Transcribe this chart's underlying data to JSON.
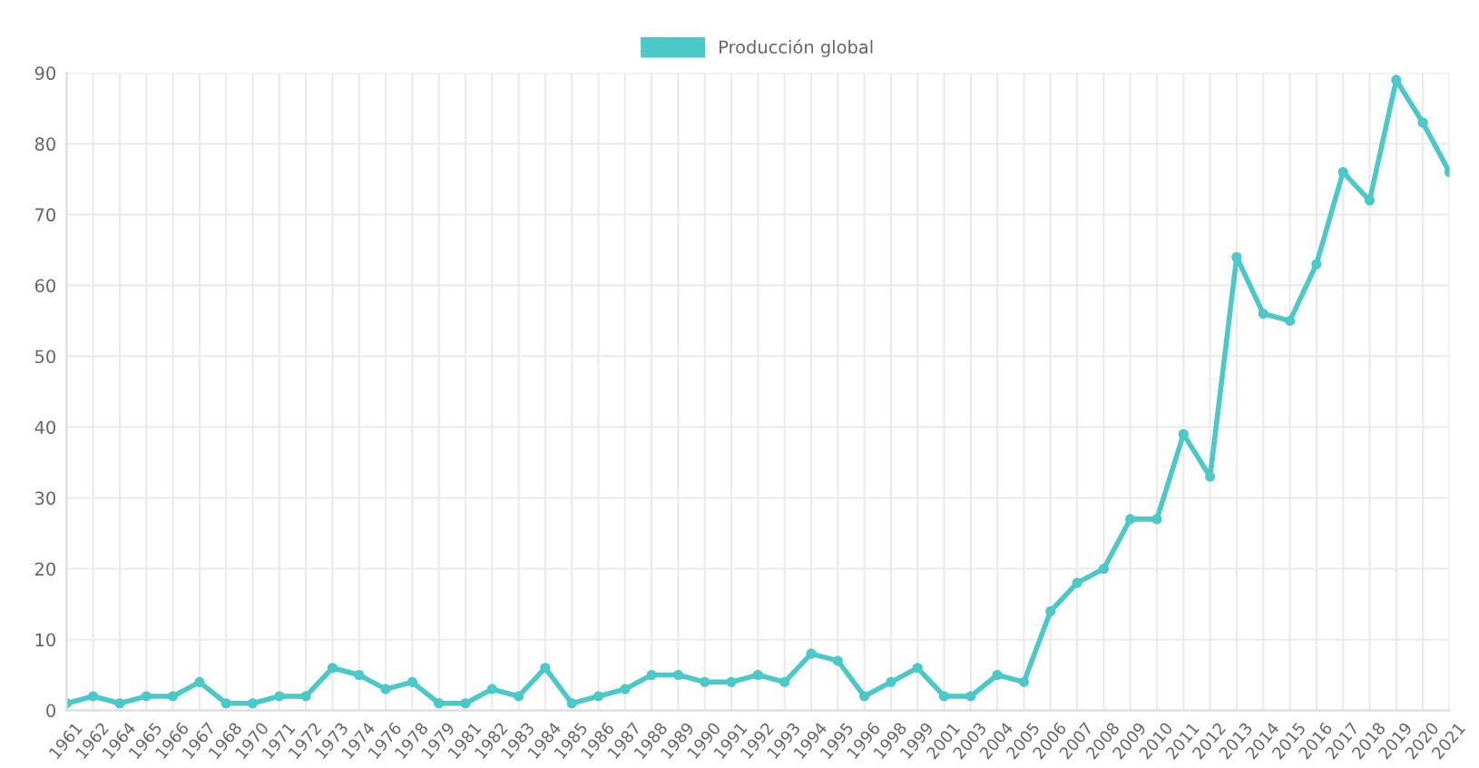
{
  "chart_data": {
    "type": "line",
    "categories": [
      "1961",
      "1962",
      "1964",
      "1965",
      "1966",
      "1967",
      "1968",
      "1970",
      "1971",
      "1972",
      "1973",
      "1974",
      "1976",
      "1978",
      "1979",
      "1981",
      "1982",
      "1983",
      "1984",
      "1985",
      "1986",
      "1987",
      "1988",
      "1989",
      "1990",
      "1991",
      "1992",
      "1993",
      "1994",
      "1995",
      "1996",
      "1998",
      "1999",
      "2001",
      "2003",
      "2004",
      "2005",
      "2006",
      "2007",
      "2008",
      "2009",
      "2010",
      "2011",
      "2012",
      "2013",
      "2014",
      "2015",
      "2016",
      "2017",
      "2018",
      "2019",
      "2020",
      "2021"
    ],
    "series": [
      {
        "name": "Producción global",
        "color": "#4bc8c8",
        "values": [
          1,
          2,
          1,
          2,
          2,
          4,
          1,
          1,
          2,
          2,
          6,
          5,
          3,
          4,
          1,
          1,
          3,
          2,
          6,
          1,
          2,
          3,
          5,
          5,
          4,
          4,
          5,
          4,
          8,
          7,
          2,
          4,
          6,
          2,
          2,
          5,
          4,
          14,
          18,
          20,
          27,
          27,
          39,
          33,
          64,
          56,
          55,
          63,
          76,
          72,
          89,
          83,
          76
        ]
      }
    ],
    "ylim": [
      0,
      90
    ],
    "yticks": [
      0,
      10,
      20,
      30,
      40,
      50,
      60,
      70,
      80,
      90
    ],
    "grid": true,
    "legend": "top",
    "marker": "circle",
    "line_style": "solid"
  }
}
